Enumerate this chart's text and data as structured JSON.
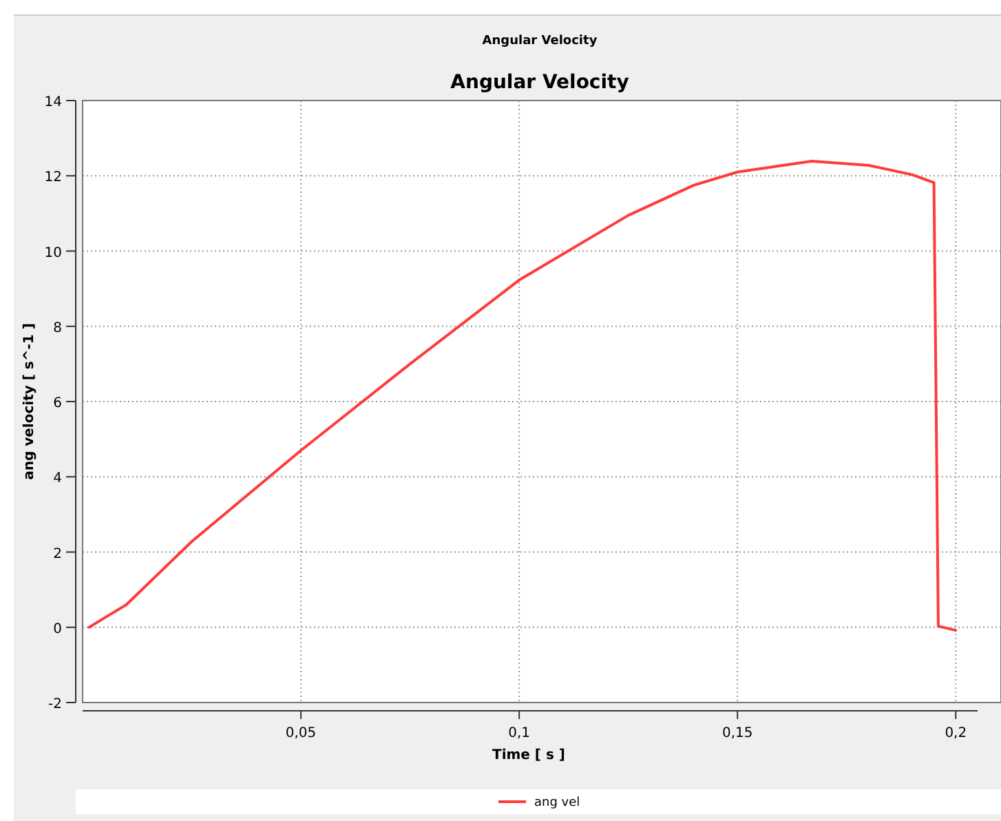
{
  "chart_data": {
    "type": "line",
    "title": "Angular Velocity",
    "annotations": [
      "Angular Velocity"
    ],
    "xlabel": "Time [ s ]",
    "ylabel": "ang velocity [ s^-1 ]",
    "x": [
      0.0015,
      0.005,
      0.01,
      0.025,
      0.05,
      0.075,
      0.1,
      0.125,
      0.14,
      0.15,
      0.167,
      0.18,
      0.19,
      0.195,
      0.196,
      0.2
    ],
    "series": [
      {
        "name": "ang vel",
        "color": "#ff3b3b",
        "values": [
          0,
          0.25,
          0.6,
          2.28,
          4.7,
          7.0,
          9.23,
          10.95,
          11.75,
          12.1,
          12.39,
          12.28,
          12.03,
          11.82,
          0.03,
          -0.08
        ]
      }
    ],
    "xlim": [
      0,
      0.205
    ],
    "ylim": [
      -2,
      14
    ],
    "xticks": [
      {
        "value": 0.05,
        "label": "0,05"
      },
      {
        "value": 0.1,
        "label": "0,1"
      },
      {
        "value": 0.15,
        "label": "0,15"
      },
      {
        "value": 0.2,
        "label": "0,2"
      }
    ],
    "yticks": [
      -2,
      0,
      2,
      4,
      6,
      8,
      10,
      12,
      14
    ],
    "grid": true,
    "legend": "bottom",
    "marker": "none",
    "line_style": "solid"
  }
}
